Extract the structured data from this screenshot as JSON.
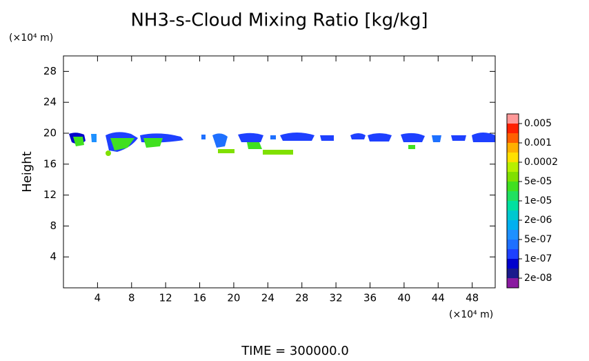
{
  "chart_data": {
    "type": "contour",
    "title": "NH3-s-Cloud Mixing Ratio [kg/kg]",
    "y_axis_unit": "(×10⁴ m)",
    "x_axis_unit": "(×10⁴ m)",
    "ylabel": "Height",
    "footer": "TIME = 300000.0",
    "xlim": [
      0,
      50.7
    ],
    "ylim": [
      0,
      30
    ],
    "xticks": [
      4,
      8,
      12,
      16,
      20,
      24,
      28,
      32,
      36,
      40,
      44,
      48
    ],
    "yticks": [
      4,
      8,
      12,
      16,
      20,
      24,
      28
    ],
    "colorbar": {
      "levels": [
        {
          "value": 2e-08,
          "label": "2e-08"
        },
        {
          "value": 1e-07,
          "label": "1e-07"
        },
        {
          "value": 5e-07,
          "label": "5e-07"
        },
        {
          "value": 2e-06,
          "label": "2e-06"
        },
        {
          "value": 1e-05,
          "label": "1e-05"
        },
        {
          "value": 5e-05,
          "label": "5e-05"
        },
        0.0002,
        0.001,
        0.005
      ],
      "colors": [
        "#8a1aa0",
        "#1a1a8c",
        "#0000cd",
        "#1e40ff",
        "#1e70ff",
        "#1e90ff",
        "#00b0f0",
        "#00c8d0",
        "#00e0a0",
        "#20e060",
        "#40e020",
        "#80e000",
        "#b8f000",
        "#ffe000",
        "#ffb000",
        "#ff6000",
        "#ff2000",
        "#ff9898"
      ]
    }
  }
}
